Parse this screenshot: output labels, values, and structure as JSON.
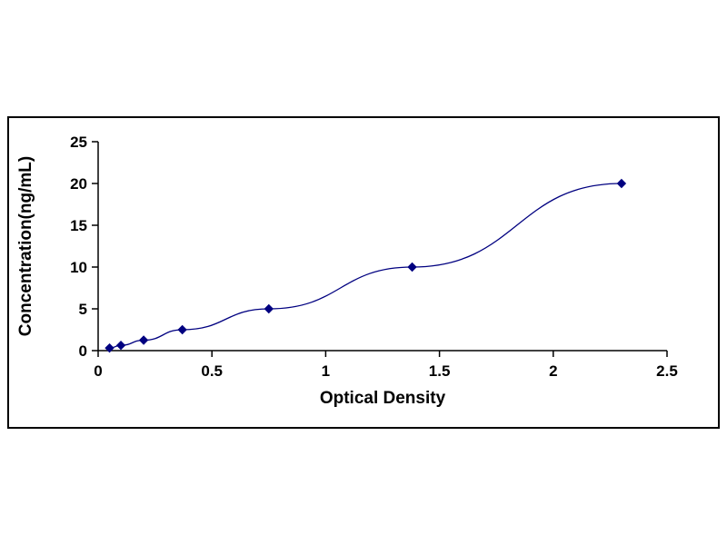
{
  "page": {
    "background_color": "#ffffff",
    "frame_border_color": "#000000"
  },
  "chart_data": {
    "type": "line",
    "title": "",
    "xlabel": "Optical Density",
    "ylabel": "Concentration(ng/mL)",
    "x": [
      0.05,
      0.1,
      0.2,
      0.37,
      0.75,
      1.38,
      2.3
    ],
    "y": [
      0.31,
      0.63,
      1.25,
      2.5,
      5,
      10,
      20
    ],
    "xlim": [
      0,
      2.5
    ],
    "ylim": [
      0,
      25
    ],
    "xticks": [
      0,
      0.5,
      1,
      1.5,
      2,
      2.5
    ],
    "xtick_labels": [
      "0",
      "0.5",
      "1",
      "1.5",
      "2",
      "2.5"
    ],
    "yticks": [
      0,
      5,
      10,
      15,
      20,
      25
    ],
    "ytick_labels": [
      "0",
      "5",
      "10",
      "15",
      "20",
      "25"
    ],
    "grid": false,
    "legend": null,
    "marker": "diamond",
    "line_color": "#000080",
    "marker_color": "#000080",
    "axis_color": "#000000"
  }
}
